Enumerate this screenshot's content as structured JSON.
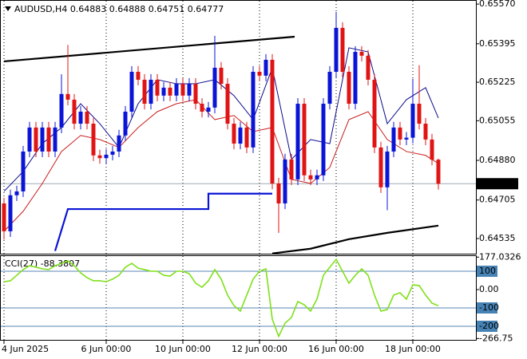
{
  "chart_data": [
    {
      "type": "candlestick",
      "title": "AUDUSD,H4  0.64883 0.64888 0.64751 0.64777",
      "categories": [
        "4 Jun 2025",
        null,
        null,
        null,
        null,
        null,
        null,
        null,
        null,
        null,
        null,
        null,
        null,
        null,
        null,
        null,
        "6 Jun 00:00",
        null,
        null,
        null,
        null,
        null,
        null,
        null,
        null,
        null,
        null,
        null,
        "10 Jun 00:00",
        null,
        null,
        null,
        null,
        null,
        null,
        null,
        null,
        null,
        null,
        null,
        "12 Jun 00:00",
        null,
        null,
        null,
        null,
        null,
        null,
        null,
        null,
        null,
        null,
        null,
        "16 Jun 00:00",
        null,
        null,
        null,
        null,
        null,
        null,
        null,
        null,
        null,
        null,
        null,
        "18 Jun 00:00",
        null,
        null,
        null,
        null
      ],
      "open": [
        0.6469,
        0.64567,
        0.64726,
        0.64743,
        0.64919,
        0.65025,
        0.64919,
        0.65025,
        0.64919,
        0.65025,
        0.65173,
        0.65148,
        0.65042,
        0.65095,
        0.65042,
        0.64902,
        0.6489,
        0.64905,
        0.64919,
        0.6499,
        0.65095,
        0.65271,
        0.65236,
        0.6513,
        0.65236,
        0.65166,
        0.65201,
        0.65166,
        0.65218,
        0.65166,
        0.65218,
        0.6513,
        0.65095,
        0.65113,
        0.65289,
        0.65218,
        0.65042,
        0.64954,
        0.65025,
        0.64937,
        0.65271,
        0.65254,
        0.65324,
        0.64778,
        0.6469,
        0.64884,
        0.64796,
        0.6513,
        0.64814,
        0.64796,
        0.64814,
        0.6513,
        0.65271,
        0.65465,
        0.65271,
        0.6513,
        0.65359,
        0.65342,
        0.65236,
        0.64937,
        0.64761,
        0.64919,
        0.65025,
        0.64972,
        0.6498,
        0.6513,
        0.65042,
        0.64972,
        0.64883
      ],
      "high": [
        0.64715,
        0.64751,
        0.64768,
        0.64944,
        0.6505,
        0.6505,
        0.6505,
        0.6505,
        0.6505,
        0.6526,
        0.6539,
        0.65173,
        0.6512,
        0.6512,
        0.65067,
        0.64927,
        0.6493,
        0.64944,
        0.65015,
        0.6512,
        0.65296,
        0.65296,
        0.65261,
        0.65261,
        0.65261,
        0.65226,
        0.65226,
        0.65243,
        0.65243,
        0.65243,
        0.65243,
        0.65155,
        0.65138,
        0.6543,
        0.65314,
        0.65243,
        0.65067,
        0.6505,
        0.6505,
        0.65296,
        0.65296,
        0.65349,
        0.65349,
        0.64803,
        0.64909,
        0.64909,
        0.65155,
        0.65155,
        0.64839,
        0.64839,
        0.65155,
        0.65296,
        0.65535,
        0.6549,
        0.65296,
        0.65384,
        0.65384,
        0.65367,
        0.65261,
        0.64962,
        0.64944,
        0.6505,
        0.6505,
        0.65005,
        0.6524,
        0.653,
        0.65067,
        0.64997,
        0.64888
      ],
      "low": [
        0.6453,
        0.64542,
        0.64701,
        0.64718,
        0.64894,
        0.64894,
        0.64894,
        0.64894,
        0.64894,
        0.65,
        0.65123,
        0.65017,
        0.65017,
        0.65017,
        0.64877,
        0.64865,
        0.64865,
        0.6488,
        0.64894,
        0.64965,
        0.6507,
        0.65211,
        0.65105,
        0.65105,
        0.65141,
        0.65141,
        0.65141,
        0.65141,
        0.65141,
        0.65141,
        0.65105,
        0.6507,
        0.6507,
        0.65088,
        0.65193,
        0.65017,
        0.64929,
        0.64929,
        0.64912,
        0.64912,
        0.65229,
        0.65229,
        0.64753,
        0.6456,
        0.64665,
        0.64771,
        0.64771,
        0.64789,
        0.64771,
        0.64771,
        0.64789,
        0.65105,
        0.65246,
        0.65246,
        0.65105,
        0.65105,
        0.65317,
        0.65211,
        0.64912,
        0.64736,
        0.6466,
        0.64894,
        0.64947,
        0.64947,
        0.64955,
        0.65017,
        0.64947,
        0.64858,
        0.64751
      ],
      "close": [
        0.64567,
        0.64726,
        0.64743,
        0.64919,
        0.65025,
        0.64919,
        0.65025,
        0.64919,
        0.65025,
        0.65173,
        0.65148,
        0.65042,
        0.65095,
        0.65042,
        0.64902,
        0.6489,
        0.64905,
        0.64919,
        0.6499,
        0.65095,
        0.65271,
        0.65236,
        0.6513,
        0.65236,
        0.65166,
        0.65201,
        0.65166,
        0.65218,
        0.65166,
        0.65218,
        0.6513,
        0.65095,
        0.65113,
        0.65289,
        0.65218,
        0.65042,
        0.64954,
        0.65025,
        0.64937,
        0.65271,
        0.65254,
        0.65324,
        0.64778,
        0.6469,
        0.64884,
        0.64796,
        0.6513,
        0.64814,
        0.64796,
        0.64814,
        0.6513,
        0.65271,
        0.65465,
        0.65271,
        0.6513,
        0.65359,
        0.65342,
        0.65236,
        0.64937,
        0.64761,
        0.64919,
        0.65025,
        0.64972,
        0.6498,
        0.6513,
        0.65042,
        0.64972,
        0.64883,
        0.64777
      ],
      "up_color": "#0a14d6",
      "down_color": "#e01414",
      "series": [
        {
          "color": "#0a0a8c",
          "x": [
            0,
            3,
            6,
            9,
            12,
            15,
            18,
            21,
            24,
            27,
            30,
            33,
            36,
            39,
            42,
            45,
            48,
            51,
            54,
            57,
            60,
            63,
            66,
            68
          ],
          "values": [
            0.64743,
            0.64831,
            0.64954,
            0.65025,
            0.6513,
            0.65042,
            0.64937,
            0.6513,
            0.65236,
            0.65218,
            0.65218,
            0.65236,
            0.65166,
            0.6506,
            0.65289,
            0.64884,
            0.64972,
            0.64954,
            0.65377,
            0.65359,
            0.65042,
            0.65148,
            0.65201,
            0.65067
          ]
        },
        {
          "color": "#c81e1e",
          "x": [
            0,
            3,
            6,
            9,
            12,
            15,
            18,
            21,
            24,
            27,
            30,
            33,
            36,
            39,
            42,
            45,
            48,
            51,
            54,
            57,
            60,
            63,
            66,
            68
          ],
          "values": [
            0.64567,
            0.64655,
            0.64778,
            0.64919,
            0.6499,
            0.64972,
            0.64937,
            0.65025,
            0.65095,
            0.6513,
            0.65148,
            0.6506,
            0.65078,
            0.65007,
            0.65025,
            0.64796,
            0.64778,
            0.64849,
            0.6506,
            0.65095,
            0.64972,
            0.64919,
            0.64902,
            0.64866
          ]
        },
        {
          "color": "#0a14d6",
          "x": [
            8,
            10,
            32,
            32,
            42
          ],
          "values": [
            0.6448,
            0.64665,
            0.64665,
            0.64733,
            0.64733
          ]
        },
        {
          "color": "#000000",
          "x": [
            42,
            48,
            54,
            60,
            68
          ],
          "values": [
            0.64469,
            0.6449,
            0.64532,
            0.6456,
            0.64592
          ]
        },
        {
          "color": "#000000",
          "x": [
            0,
            45.5
          ],
          "values": [
            0.65317,
            0.65426
          ]
        }
      ],
      "current_price": 0.64777,
      "ylim": [
        0.64468,
        0.65588
      ],
      "yticks": [
        {
          "value": 0.6557,
          "label": "0.65570"
        },
        0.65395,
        0.65225,
        0.65055,
        {
          "value": 0.6488,
          "label": "0.64880"
        },
        0.64705,
        0.64535
      ],
      "grid": true
    },
    {
      "type": "line",
      "title": "CCI(27) -88.3807",
      "color": "#7fe01a",
      "values": [
        43,
        48,
        78,
        109,
        130,
        122,
        113,
        109,
        130,
        143,
        157,
        130,
        91,
        65,
        48,
        48,
        43,
        57,
        78,
        122,
        143,
        117,
        109,
        100,
        100,
        78,
        74,
        100,
        100,
        87,
        35,
        13,
        48,
        109,
        57,
        -30,
        -87,
        -117,
        -30,
        57,
        100,
        113,
        -161,
        -255,
        -183,
        -152,
        -65,
        -83,
        -117,
        -52,
        78,
        122,
        165,
        100,
        35,
        78,
        113,
        78,
        -30,
        -117,
        -109,
        -30,
        -17,
        -52,
        26,
        22,
        -30,
        -74,
        -88.3807
      ],
      "ylim": [
        -274,
        187
      ],
      "yticks": [
        177.0326,
        100,
        {
          "value": 0,
          "label": "0.00"
        },
        -100,
        -200,
        -266.75
      ],
      "levels": [
        100,
        -100,
        -200
      ]
    }
  ]
}
